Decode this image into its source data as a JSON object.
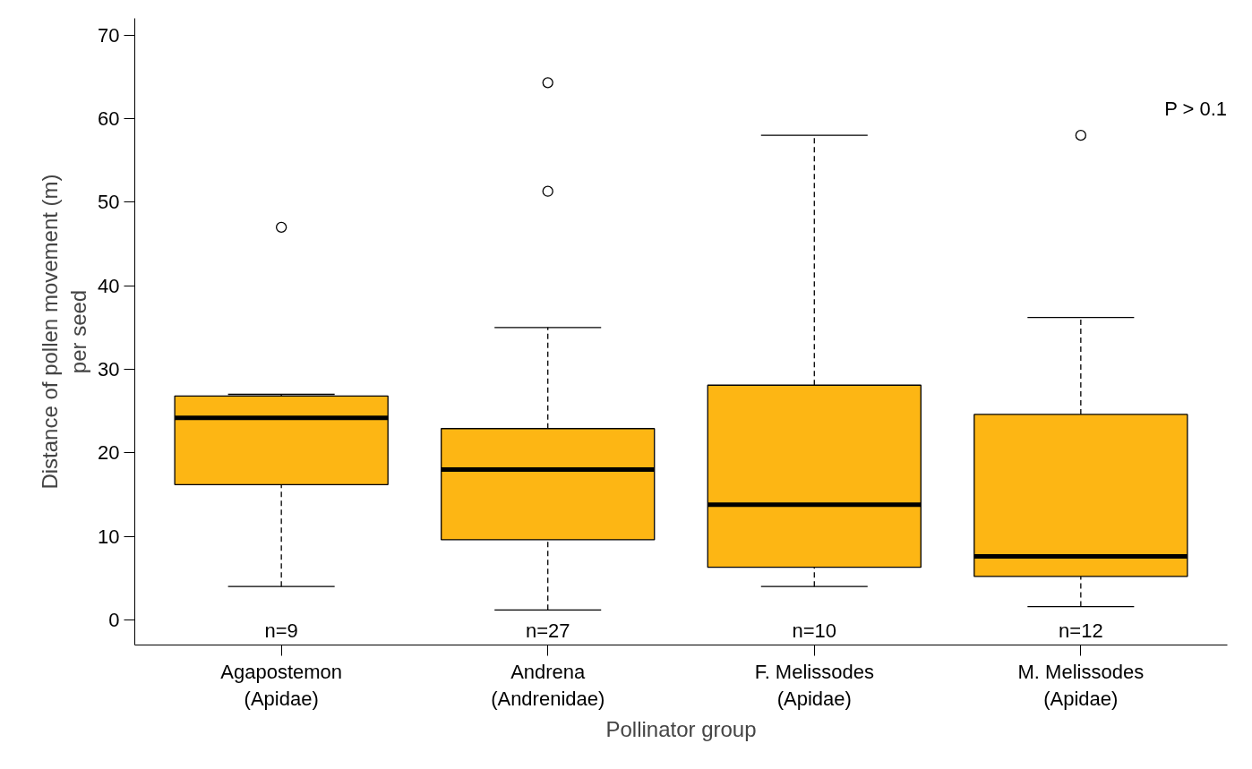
{
  "chart_data": {
    "type": "box",
    "xlabel": "Pollinator group",
    "ylabel": "Distance of pollen movement (m)\nper seed",
    "categories": [
      "Agapostemon\n(Apidae)",
      "Andrena\n(Andrenidae)",
      "F. Melissodes\n(Apidae)",
      "M. Melissodes\n(Apidae)"
    ],
    "color": "#fdb614",
    "boxes": [
      {
        "low": 4,
        "q1": 16.2,
        "median": 24.2,
        "q3": 26.8,
        "high": 27,
        "outliers": [
          47
        ]
      },
      {
        "low": 1.2,
        "q1": 9.6,
        "median": 18,
        "q3": 22.9,
        "high": 35,
        "outliers": [
          51.3,
          64.3
        ]
      },
      {
        "low": 4,
        "q1": 6.3,
        "median": 13.8,
        "q3": 28.1,
        "high": 58
      },
      {
        "low": 1.6,
        "q1": 5.2,
        "median": 7.6,
        "q3": 24.6,
        "high": 36.2,
        "outliers": [
          58
        ]
      }
    ],
    "ylim": [
      -3,
      72
    ],
    "yticks": [
      0,
      10,
      20,
      30,
      40,
      50,
      60,
      70
    ],
    "grid": false,
    "annotations": [
      "n=9",
      "n=27",
      "n=10",
      "n=12",
      "P > 0.1"
    ]
  }
}
